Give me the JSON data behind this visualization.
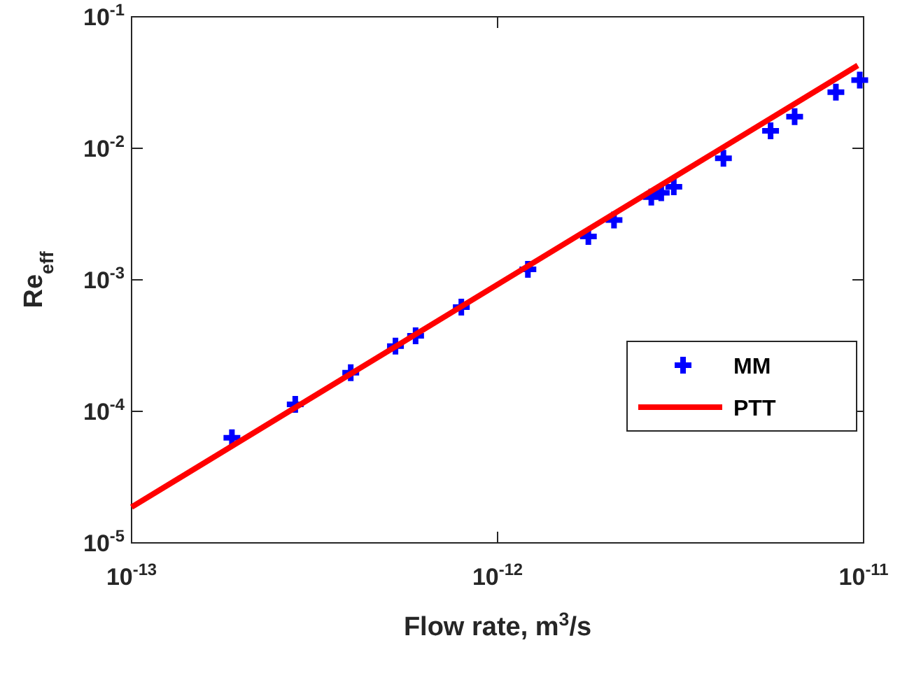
{
  "chart_data": {
    "type": "scatter",
    "xlabel": "Flow rate, m$^{3}$/s",
    "ylabel": "Re$_{eff}$",
    "log": "xy",
    "grid": false,
    "legend": "right",
    "xlim": [
      1e-13,
      1e-11
    ],
    "ylim": [
      1e-05,
      0.1
    ],
    "xticks": [
      {
        "value": 1e-13,
        "label": "10$^{-13}$"
      },
      {
        "value": 1e-12,
        "label": "10$^{-12}$"
      },
      {
        "value": 1e-11,
        "label": "10$^{-11}$"
      }
    ],
    "yticks": [
      {
        "value": 1e-05,
        "label": "10$^{-5}$"
      },
      {
        "value": 0.0001,
        "label": "10$^{-4}$"
      },
      {
        "value": 0.001,
        "label": "10$^{-3}$"
      },
      {
        "value": 0.01,
        "label": "10$^{-2}$"
      },
      {
        "value": 0.1,
        "label": "10$^{-1}$"
      }
    ],
    "series": [
      {
        "name": "MM",
        "type": "scatter",
        "marker": "cross",
        "color": "#0000ff",
        "x": [
          1.88e-13,
          2.8e-13,
          3.97e-13,
          5.26e-13,
          5.97e-13,
          7.96e-13,
          1.21e-12,
          1.77e-12,
          2.08e-12,
          2.63e-12,
          2.8e-12,
          3.03e-12,
          4.14e-12,
          5.57e-12,
          6.48e-12,
          8.4e-12,
          9.76e-12
        ],
        "values": [
          6.3e-05,
          0.000113,
          0.000197,
          0.000313,
          0.000375,
          0.00062,
          0.0012,
          0.00214,
          0.00285,
          0.00425,
          0.0046,
          0.0051,
          0.0084,
          0.0136,
          0.0174,
          0.0267,
          0.033
        ]
      },
      {
        "name": "PTT",
        "type": "line",
        "marker": "none",
        "line_style": "solid",
        "color": "#ff0000",
        "x": [
          1e-13,
          9.64e-12
        ],
        "values": [
          1.87e-05,
          0.0427
        ]
      }
    ]
  }
}
